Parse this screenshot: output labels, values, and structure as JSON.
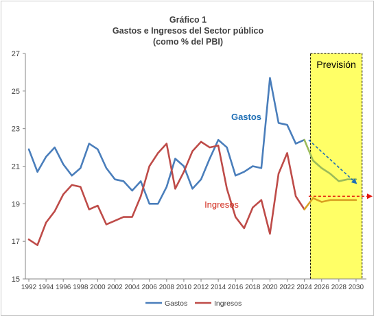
{
  "chart_data": {
    "type": "line",
    "title": "Gráfico 1",
    "subtitle": "Gastos e Ingresos del Sector público",
    "subtitle2": "(como % del PBI)",
    "xlabel": "",
    "ylabel": "",
    "ylim": [
      15,
      27
    ],
    "xlim": [
      1992,
      2030
    ],
    "yticks": [
      15,
      17,
      19,
      21,
      23,
      25,
      27
    ],
    "xticks": [
      1992,
      1994,
      1996,
      1998,
      2000,
      2002,
      2004,
      2006,
      2008,
      2010,
      2012,
      2014,
      2016,
      2018,
      2020,
      2022,
      2024,
      2026,
      2028,
      2030
    ],
    "grid": false,
    "legend_position": "bottom",
    "forecast": {
      "label": "Previsión",
      "start": 2024.7,
      "end": 2030.7,
      "color": "#ffff66"
    },
    "series": [
      {
        "name": "Gastos",
        "color": "#4a7ebb",
        "forecast_color": "#9bbb59",
        "annotation": "Gastos",
        "annotation_color": "#1f6fb5",
        "x": [
          1992,
          1993,
          1994,
          1995,
          1996,
          1997,
          1998,
          1999,
          2000,
          2001,
          2002,
          2003,
          2004,
          2005,
          2006,
          2007,
          2008,
          2009,
          2010,
          2011,
          2012,
          2013,
          2014,
          2015,
          2016,
          2017,
          2018,
          2019,
          2020,
          2021,
          2022,
          2023,
          2024,
          2025,
          2026,
          2027,
          2028,
          2029,
          2030
        ],
        "values": [
          21.9,
          20.7,
          21.5,
          22.0,
          21.1,
          20.5,
          20.9,
          22.2,
          21.9,
          20.9,
          20.3,
          20.2,
          19.7,
          20.2,
          19.0,
          19.0,
          19.9,
          21.4,
          21.0,
          19.8,
          20.3,
          21.4,
          22.4,
          22.0,
          20.5,
          20.7,
          21.0,
          20.9,
          25.7,
          23.3,
          23.2,
          22.2,
          22.4,
          21.3,
          20.9,
          20.6,
          20.2,
          20.3,
          20.3
        ]
      },
      {
        "name": "Ingresos",
        "color": "#be4b48",
        "forecast_color": "#d9a022",
        "annotation": "Ingresos",
        "annotation_color": "#d12a1c",
        "x": [
          1992,
          1993,
          1994,
          1995,
          1996,
          1997,
          1998,
          1999,
          2000,
          2001,
          2002,
          2003,
          2004,
          2005,
          2006,
          2007,
          2008,
          2009,
          2010,
          2011,
          2012,
          2013,
          2014,
          2015,
          2016,
          2017,
          2018,
          2019,
          2020,
          2021,
          2022,
          2023,
          2024,
          2025,
          2026,
          2027,
          2028,
          2029,
          2030
        ],
        "values": [
          17.1,
          16.8,
          18.0,
          18.6,
          19.5,
          20.0,
          19.9,
          18.7,
          18.9,
          17.9,
          18.1,
          18.3,
          18.3,
          19.4,
          21.0,
          21.7,
          22.2,
          19.8,
          20.7,
          21.8,
          22.3,
          22.0,
          22.1,
          19.8,
          18.3,
          17.7,
          18.8,
          19.2,
          17.4,
          20.6,
          21.7,
          19.4,
          18.7,
          19.3,
          19.1,
          19.2,
          19.2,
          19.2,
          19.2
        ]
      }
    ],
    "trend_arrows": [
      {
        "color": "#1f6fb5",
        "from": [
          2024.5,
          22.4
        ],
        "to": [
          2030.0,
          20.1
        ]
      },
      {
        "color": "#e3140b",
        "from": [
          2024.5,
          19.4
        ],
        "to": [
          2032.2,
          19.4
        ]
      }
    ]
  }
}
